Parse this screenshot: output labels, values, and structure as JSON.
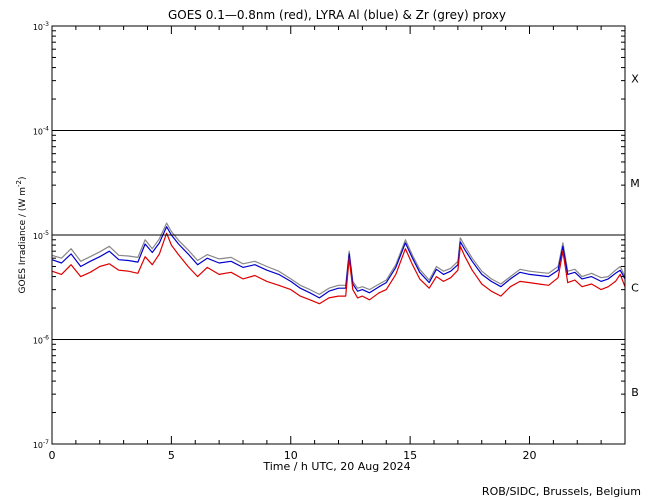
{
  "chart_data": {
    "type": "line",
    "title": "GOES 0.1—0.8nm (red), LYRA Al (blue) & Zr (grey) proxy",
    "xlabel": "Time / h UTC, 20 Aug 2024",
    "ylabel": "GOES Irradiance / (W m",
    "ylabel_exp": "-2",
    "ylabel_close": ")",
    "credit": "ROB/SIDC, Brussels, Belgium",
    "xlim": [
      0,
      24
    ],
    "ylim": [
      1e-07,
      0.001
    ],
    "yscale": "log",
    "x_ticks": [
      0,
      5,
      10,
      15,
      20
    ],
    "x_tick_labels": [
      "0",
      "5",
      "10",
      "15",
      "20"
    ],
    "y_ticks": [
      1e-07,
      1e-06,
      1e-05,
      0.0001,
      0.001
    ],
    "y_tick_labels": [
      {
        "base": "10",
        "exp": "-7"
      },
      {
        "base": "10",
        "exp": "-6"
      },
      {
        "base": "10",
        "exp": "-5"
      },
      {
        "base": "10",
        "exp": "-4"
      },
      {
        "base": "10",
        "exp": "-3"
      }
    ],
    "flare_class_lines": [
      1e-06,
      1e-05,
      0.0001
    ],
    "flare_classes": [
      {
        "label": "X",
        "y": 0.000316
      },
      {
        "label": "M",
        "y": 3.16e-05
      },
      {
        "label": "C",
        "y": 3.16e-06
      },
      {
        "label": "B",
        "y": 3.16e-07
      }
    ],
    "series": [
      {
        "name": "GOES 0.1—0.8nm",
        "color": "#dd0000",
        "x": [
          0,
          0.4,
          0.8,
          1.2,
          1.6,
          2.0,
          2.4,
          2.8,
          3.2,
          3.6,
          3.9,
          4.2,
          4.5,
          4.8,
          5.0,
          5.3,
          5.7,
          6.1,
          6.5,
          7.0,
          7.5,
          8.0,
          8.5,
          9.0,
          9.5,
          10.0,
          10.4,
          10.8,
          11.2,
          11.6,
          12.0,
          12.3,
          12.45,
          12.6,
          12.8,
          13.0,
          13.3,
          13.7,
          14.0,
          14.4,
          14.8,
          15.1,
          15.4,
          15.8,
          16.1,
          16.4,
          16.7,
          17.0,
          17.1,
          17.3,
          17.6,
          18.0,
          18.4,
          18.8,
          19.2,
          19.6,
          20.0,
          20.4,
          20.8,
          21.2,
          21.4,
          21.6,
          21.9,
          22.2,
          22.6,
          23.0,
          23.3,
          23.6,
          23.8,
          24.0
        ],
        "y": [
          4.5e-06,
          4.2e-06,
          5.2e-06,
          4e-06,
          4.4e-06,
          5e-06,
          5.3e-06,
          4.6e-06,
          4.5e-06,
          4.3e-06,
          6.2e-06,
          5.2e-06,
          6.6e-06,
          1.04e-05,
          8e-06,
          6.5e-06,
          5e-06,
          4e-06,
          4.9e-06,
          4.2e-06,
          4.4e-06,
          3.8e-06,
          4.1e-06,
          3.6e-06,
          3.3e-06,
          3e-06,
          2.6e-06,
          2.4e-06,
          2.2e-06,
          2.5e-06,
          2.6e-06,
          2.6e-06,
          6e-06,
          3e-06,
          2.5e-06,
          2.6e-06,
          2.4e-06,
          2.8e-06,
          3e-06,
          4.2e-06,
          7.4e-06,
          5.2e-06,
          3.8e-06,
          3.1e-06,
          4e-06,
          3.6e-06,
          3.9e-06,
          4.6e-06,
          7.8e-06,
          6.2e-06,
          4.6e-06,
          3.4e-06,
          2.9e-06,
          2.6e-06,
          3.2e-06,
          3.6e-06,
          3.5e-06,
          3.4e-06,
          3.3e-06,
          3.9e-06,
          7e-06,
          3.5e-06,
          3.7e-06,
          3.2e-06,
          3.4e-06,
          3e-06,
          3.2e-06,
          3.6e-06,
          4.2e-06,
          3.2e-06
        ]
      },
      {
        "name": "LYRA Al",
        "color": "#0000cc",
        "x": [
          0,
          0.4,
          0.8,
          1.2,
          1.6,
          2.0,
          2.4,
          2.8,
          3.2,
          3.6,
          3.9,
          4.2,
          4.5,
          4.8,
          5.0,
          5.3,
          5.7,
          6.1,
          6.5,
          7.0,
          7.5,
          8.0,
          8.5,
          9.0,
          9.5,
          10.0,
          10.4,
          10.8,
          11.2,
          11.6,
          12.0,
          12.3,
          12.45,
          12.6,
          12.8,
          13.0,
          13.3,
          13.7,
          14.0,
          14.4,
          14.8,
          15.1,
          15.4,
          15.8,
          16.1,
          16.4,
          16.7,
          17.0,
          17.1,
          17.3,
          17.6,
          18.0,
          18.4,
          18.8,
          19.2,
          19.6,
          20.0,
          20.4,
          20.8,
          21.2,
          21.4,
          21.6,
          21.9,
          22.2,
          22.6,
          23.0,
          23.3,
          23.6,
          23.8,
          24.0
        ],
        "y": [
          5.8e-06,
          5.4e-06,
          6.6e-06,
          5e-06,
          5.6e-06,
          6.2e-06,
          7e-06,
          5.8e-06,
          5.7e-06,
          5.5e-06,
          8.2e-06,
          6.8e-06,
          8.4e-06,
          1.2e-05,
          1e-05,
          8.2e-06,
          6.6e-06,
          5.2e-06,
          6e-06,
          5.4e-06,
          5.6e-06,
          4.9e-06,
          5.2e-06,
          4.6e-06,
          4.2e-06,
          3.6e-06,
          3.1e-06,
          2.8e-06,
          2.5e-06,
          2.9e-06,
          3.1e-06,
          3.1e-06,
          6.6e-06,
          3.4e-06,
          2.9e-06,
          3e-06,
          2.8e-06,
          3.2e-06,
          3.5e-06,
          4.9e-06,
          8.4e-06,
          6e-06,
          4.4e-06,
          3.5e-06,
          4.7e-06,
          4.2e-06,
          4.5e-06,
          5.2e-06,
          8.6e-06,
          7.2e-06,
          5.6e-06,
          4.2e-06,
          3.6e-06,
          3.2e-06,
          3.8e-06,
          4.4e-06,
          4.2e-06,
          4.1e-06,
          4e-06,
          4.6e-06,
          7.8e-06,
          4.2e-06,
          4.4e-06,
          3.8e-06,
          4e-06,
          3.6e-06,
          3.8e-06,
          4.3e-06,
          4.6e-06,
          3.8e-06
        ]
      },
      {
        "name": "Zr",
        "color": "#888888",
        "x": [
          0,
          0.4,
          0.8,
          1.2,
          1.6,
          2.0,
          2.4,
          2.8,
          3.2,
          3.6,
          3.9,
          4.2,
          4.5,
          4.8,
          5.0,
          5.3,
          5.7,
          6.1,
          6.5,
          7.0,
          7.5,
          8.0,
          8.5,
          9.0,
          9.5,
          10.0,
          10.4,
          10.8,
          11.2,
          11.6,
          12.0,
          12.3,
          12.45,
          12.6,
          12.8,
          13.0,
          13.3,
          13.7,
          14.0,
          14.4,
          14.8,
          15.1,
          15.4,
          15.8,
          16.1,
          16.4,
          16.7,
          17.0,
          17.1,
          17.3,
          17.6,
          18.0,
          18.4,
          18.8,
          19.2,
          19.6,
          20.0,
          20.4,
          20.8,
          21.2,
          21.4,
          21.6,
          21.9,
          22.2,
          22.6,
          23.0,
          23.3,
          23.6,
          23.8,
          24.0
        ],
        "y": [
          6.4e-06,
          6e-06,
          7.4e-06,
          5.6e-06,
          6.2e-06,
          6.9e-06,
          7.8e-06,
          6.4e-06,
          6.3e-06,
          6.1e-06,
          9e-06,
          7.4e-06,
          9.2e-06,
          1.3e-05,
          1.08e-05,
          8.9e-06,
          7.2e-06,
          5.7e-06,
          6.5e-06,
          5.9e-06,
          6.1e-06,
          5.3e-06,
          5.6e-06,
          5e-06,
          4.5e-06,
          3.8e-06,
          3.3e-06,
          3e-06,
          2.7e-06,
          3.1e-06,
          3.3e-06,
          3.3e-06,
          7e-06,
          3.6e-06,
          3.1e-06,
          3.2e-06,
          3e-06,
          3.4e-06,
          3.7e-06,
          5.2e-06,
          9e-06,
          6.4e-06,
          4.7e-06,
          3.7e-06,
          5e-06,
          4.5e-06,
          4.8e-06,
          5.6e-06,
          9.4e-06,
          7.8e-06,
          6e-06,
          4.5e-06,
          3.8e-06,
          3.4e-06,
          4e-06,
          4.7e-06,
          4.5e-06,
          4.4e-06,
          4.3e-06,
          5e-06,
          8.4e-06,
          4.5e-06,
          4.7e-06,
          4e-06,
          4.3e-06,
          3.9e-06,
          4e-06,
          4.6e-06,
          5e-06,
          4e-06
        ]
      }
    ]
  }
}
